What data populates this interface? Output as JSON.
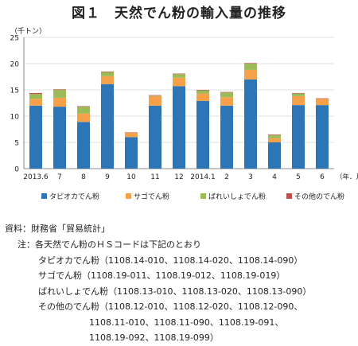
{
  "chart_data": {
    "type": "bar",
    "stacked": true,
    "title": "図１　天然でん粉の輸入量の推移",
    "unit_label": "（千トン）",
    "x_unit_label": "（年．月）",
    "categories": [
      "2013.6",
      "7",
      "8",
      "9",
      "10",
      "11",
      "12",
      "2014.1",
      "2",
      "3",
      "4",
      "5",
      "6"
    ],
    "ylim": [
      0,
      25
    ],
    "yticks": [
      0,
      5,
      10,
      15,
      20,
      25
    ],
    "grid": true,
    "legend_position": "bottom",
    "series": [
      {
        "name": "タピオカでん粉",
        "color": "#2e75b6",
        "values": [
          12.0,
          11.8,
          8.9,
          16.1,
          6.0,
          12.0,
          15.7,
          12.9,
          12.0,
          17.0,
          5.0,
          12.1,
          12.1
        ]
      },
      {
        "name": "サゴでん粉",
        "color": "#f4a14a",
        "values": [
          1.3,
          1.7,
          1.6,
          1.5,
          0.8,
          1.8,
          1.6,
          1.4,
          1.6,
          1.8,
          0.8,
          1.7,
          1.2
        ]
      },
      {
        "name": "ばれいしょでん粉",
        "color": "#9bbb59",
        "values": [
          0.9,
          1.5,
          1.3,
          0.8,
          0.0,
          0.1,
          0.7,
          0.6,
          0.9,
          1.2,
          0.6,
          0.5,
          0.0
        ]
      },
      {
        "name": "その他のでん粉",
        "color": "#c0504d",
        "values": [
          0.2,
          0.1,
          0.1,
          0.1,
          0.1,
          0.1,
          0.1,
          0.1,
          0.1,
          0.1,
          0.1,
          0.1,
          0.1
        ]
      }
    ]
  },
  "source": "資料：財務省「貿易統計」",
  "notes": {
    "lead": "注：各天然でん粉のＨＳコードは下記のとおり",
    "tapioca": "タピオカでん粉（1108.14-010、1108.14-020、1108.14-090）",
    "sago": "サゴでん粉（1108.19-011、1108.19-012、1108.19-019）",
    "potato": "ばれいしょでん粉（1108.13-010、1108.13-020、1108.13-090）",
    "other_1": "その他のでん粉（1108.12-010、1108.12-020、1108.12-090、",
    "other_2": "1108.11-010、1108.11-090、1108.19-091、",
    "other_3": "1108.19-092、1108.19-099）"
  }
}
